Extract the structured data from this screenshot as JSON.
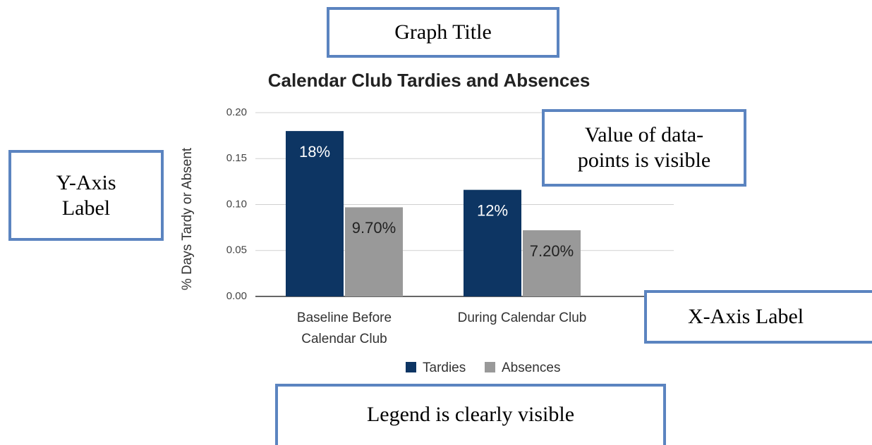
{
  "chart_data": {
    "type": "bar",
    "title": "Calendar Club Tardies and Absences",
    "ylabel": "% Days Tardy or Absent",
    "categories": [
      "Baseline Before Calendar Club",
      "During Calendar Club"
    ],
    "series": [
      {
        "name": "Tardies",
        "color": "#0d3563",
        "values": [
          0.18,
          0.116
        ],
        "value_labels": [
          "18%",
          "12%"
        ]
      },
      {
        "name": "Absences",
        "color": "#999999",
        "values": [
          0.097,
          0.072
        ],
        "value_labels": [
          "9.70%",
          "7.20%"
        ]
      }
    ],
    "ylim": [
      0,
      0.2
    ],
    "yticks": [
      {
        "value": 0,
        "label": "0.00"
      },
      {
        "value": 0.05,
        "label": "0.05"
      },
      {
        "value": 0.1,
        "label": "0.10"
      },
      {
        "value": 0.15,
        "label": "0.15"
      },
      {
        "value": 0.2,
        "label": "0.20"
      }
    ],
    "grid": true,
    "legend": "bottom",
    "annotations": [
      "Graph Title",
      "Value of data-points is visible",
      "Y-Axis Label",
      "X-Axis Label",
      "Legend is clearly visible"
    ]
  }
}
